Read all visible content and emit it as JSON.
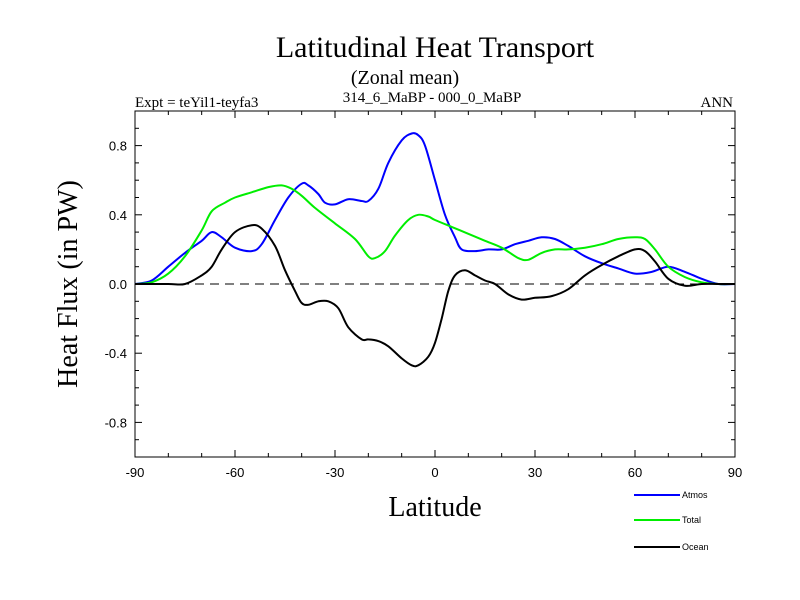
{
  "chart_data": {
    "type": "line",
    "title": "Latitudinal Heat Transport",
    "subtitle": "(Zonal mean)",
    "left_label": "Expt = teYil1-teyfa3",
    "center_label": "314_6_MaBP - 000_0_MaBP",
    "right_label": "ANN",
    "xlabel": "Latitude",
    "ylabel": "Heat Flux (in PW)",
    "xlim": [
      -90,
      90
    ],
    "ylim": [
      -1.0,
      1.0
    ],
    "xticks": [
      -90,
      -60,
      -30,
      0,
      30,
      60,
      90
    ],
    "yticks": [
      -0.8,
      -0.4,
      0.0,
      0.4,
      0.8
    ],
    "ytick_labels": [
      "-0.8",
      "-0.4",
      "0.0",
      "0.4",
      "0.8"
    ],
    "zero_line": true,
    "legend_position": "bottom-right",
    "series": [
      {
        "name": "Atmos",
        "color": "#0000ff",
        "x": [
          -90,
          -85,
          -80,
          -75,
          -70,
          -67,
          -64,
          -60,
          -55,
          -52,
          -48,
          -44,
          -40,
          -38,
          -35,
          -33,
          -30,
          -26,
          -22,
          -20,
          -17,
          -14,
          -10,
          -7,
          -5,
          -3,
          0,
          3,
          6,
          8,
          12,
          16,
          20,
          24,
          28,
          32,
          36,
          40,
          45,
          50,
          55,
          60,
          65,
          70,
          75,
          80,
          85,
          90
        ],
        "values": [
          0.0,
          0.02,
          0.1,
          0.18,
          0.25,
          0.3,
          0.27,
          0.21,
          0.19,
          0.23,
          0.37,
          0.5,
          0.58,
          0.57,
          0.52,
          0.47,
          0.46,
          0.49,
          0.48,
          0.48,
          0.55,
          0.7,
          0.83,
          0.87,
          0.86,
          0.8,
          0.6,
          0.4,
          0.27,
          0.2,
          0.19,
          0.2,
          0.2,
          0.23,
          0.25,
          0.27,
          0.26,
          0.22,
          0.16,
          0.12,
          0.09,
          0.06,
          0.07,
          0.1,
          0.07,
          0.03,
          0.0,
          0.0
        ]
      },
      {
        "name": "Total",
        "color": "#00ee00",
        "x": [
          -90,
          -85,
          -80,
          -75,
          -70,
          -67,
          -63,
          -60,
          -55,
          -50,
          -46,
          -43,
          -40,
          -36,
          -30,
          -24,
          -20,
          -18,
          -15,
          -12,
          -8,
          -5,
          -2,
          0,
          5,
          10,
          15,
          20,
          25,
          28,
          32,
          36,
          40,
          45,
          50,
          55,
          60,
          63,
          66,
          70,
          75,
          80,
          85,
          90
        ],
        "values": [
          0.0,
          0.01,
          0.06,
          0.16,
          0.31,
          0.42,
          0.47,
          0.5,
          0.53,
          0.56,
          0.57,
          0.55,
          0.51,
          0.44,
          0.35,
          0.26,
          0.16,
          0.15,
          0.19,
          0.28,
          0.37,
          0.4,
          0.39,
          0.37,
          0.33,
          0.29,
          0.25,
          0.21,
          0.15,
          0.14,
          0.18,
          0.2,
          0.2,
          0.21,
          0.23,
          0.26,
          0.27,
          0.26,
          0.2,
          0.1,
          0.04,
          0.01,
          0.0,
          0.0
        ]
      },
      {
        "name": "Ocean",
        "color": "#000000",
        "x": [
          -90,
          -80,
          -75,
          -70,
          -67,
          -64,
          -60,
          -55,
          -52,
          -48,
          -45,
          -42,
          -40,
          -38,
          -35,
          -32,
          -29,
          -26,
          -22,
          -20,
          -17,
          -14,
          -10,
          -7,
          -5,
          -2,
          0,
          2,
          4,
          6,
          9,
          12,
          15,
          18,
          22,
          26,
          30,
          35,
          40,
          45,
          50,
          55,
          60,
          63,
          66,
          70,
          75,
          80,
          85,
          90
        ],
        "values": [
          0.0,
          0.0,
          0.0,
          0.05,
          0.1,
          0.2,
          0.3,
          0.34,
          0.32,
          0.22,
          0.08,
          -0.04,
          -0.11,
          -0.12,
          -0.1,
          -0.1,
          -0.14,
          -0.25,
          -0.32,
          -0.32,
          -0.33,
          -0.36,
          -0.43,
          -0.47,
          -0.47,
          -0.42,
          -0.34,
          -0.2,
          -0.04,
          0.05,
          0.08,
          0.05,
          0.02,
          0.0,
          -0.06,
          -0.09,
          -0.08,
          -0.07,
          -0.03,
          0.05,
          0.11,
          0.16,
          0.2,
          0.19,
          0.13,
          0.03,
          -0.01,
          0.0,
          0.0,
          0.0
        ]
      }
    ]
  }
}
